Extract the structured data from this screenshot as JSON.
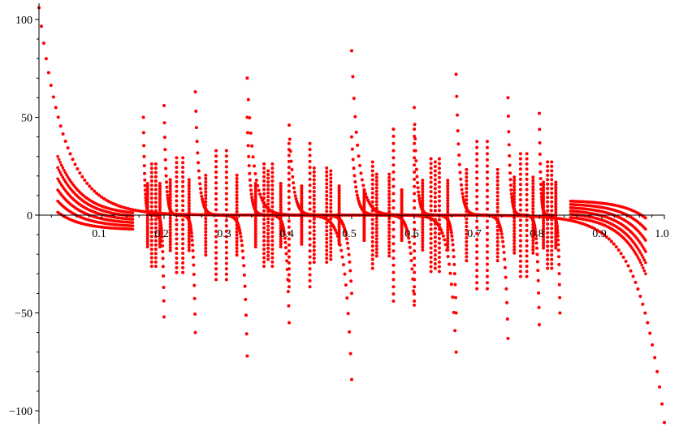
{
  "chart_data": {
    "type": "scatter",
    "title": "",
    "xlabel": "",
    "ylabel": "",
    "xlim": [
      0.0,
      1.0
    ],
    "ylim": [
      -100,
      100
    ],
    "x_ticks": [
      {
        "value": 0.1,
        "label": "0.1"
      },
      {
        "value": 0.2,
        "label": "0.2"
      },
      {
        "value": 0.3,
        "label": "0.3"
      },
      {
        "value": 0.4,
        "label": "0.4"
      },
      {
        "value": 0.5,
        "label": "0.5"
      },
      {
        "value": 0.6,
        "label": "0.6"
      },
      {
        "value": 0.7,
        "label": "0.7"
      },
      {
        "value": 0.8,
        "label": "0.8"
      },
      {
        "value": 0.9,
        "label": "0.9"
      },
      {
        "value": 1.0,
        "label": "1.0"
      }
    ],
    "y_ticks": [
      {
        "value": 100,
        "label": "100"
      },
      {
        "value": 50,
        "label": "50"
      },
      {
        "value": 0,
        "label": "0"
      },
      {
        "value": -50,
        "label": "−50"
      },
      {
        "value": -100,
        "label": "−100"
      }
    ],
    "point_color": "#ff0000",
    "grid": false,
    "legend": "none",
    "branches": [
      {
        "x_start": 0.0,
        "x_end": 1.0,
        "peak_left": 106,
        "peak_right": -106
      },
      {
        "x_start": 0.5,
        "x_end": 0.667,
        "peak_left": 84,
        "peak_right": -70
      },
      {
        "x_start": 0.333,
        "x_end": 0.5,
        "peak_left": 70,
        "peak_right": -84
      },
      {
        "x_start": 0.667,
        "x_end": 0.75,
        "peak_left": 72,
        "peak_right": -63
      },
      {
        "x_start": 0.25,
        "x_end": 0.333,
        "peak_left": 63,
        "peak_right": -72
      },
      {
        "x_start": 0.75,
        "x_end": 0.8,
        "peak_left": 60,
        "peak_right": -56
      },
      {
        "x_start": 0.2,
        "x_end": 0.25,
        "peak_left": 56,
        "peak_right": -60
      },
      {
        "x_start": 0.8,
        "x_end": 0.833,
        "peak_left": 52,
        "peak_right": -50
      },
      {
        "x_start": 0.167,
        "x_end": 0.2,
        "peak_left": 50,
        "peak_right": -52
      },
      {
        "x_start": 0.6,
        "x_end": 0.667,
        "peak_left": 55,
        "peak_right": -50
      },
      {
        "x_start": 0.333,
        "x_end": 0.4,
        "peak_left": 50,
        "peak_right": -55
      },
      {
        "x_start": 0.4,
        "x_end": 0.5,
        "peak_left": 46,
        "peak_right": -40
      },
      {
        "x_start": 0.5,
        "x_end": 0.6,
        "peak_left": 40,
        "peak_right": -46
      }
    ]
  }
}
